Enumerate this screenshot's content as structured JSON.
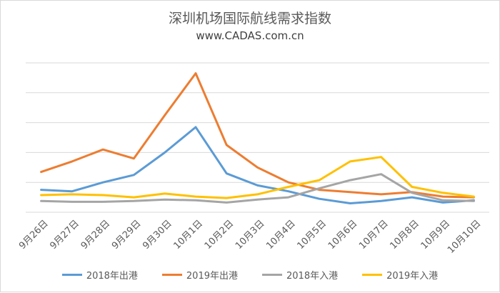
{
  "header": {
    "title": "深圳机场国际航线需求指数",
    "subtitle": "www.CADAS.com.cn"
  },
  "colors": {
    "grid": "#d9d9d9",
    "axis_text": "#595959"
  },
  "chart_data": {
    "type": "line",
    "title": "深圳机场国际航线需求指数",
    "subtitle": "www.CADAS.com.cn",
    "xlabel": "",
    "ylabel": "",
    "grid": true,
    "legend_position": "bottom",
    "ylim": [
      0,
      100
    ],
    "categories": [
      "9月26日",
      "9月27日",
      "9月28日",
      "9月29日",
      "9月30日",
      "10月1日",
      "10月2日",
      "10月3日",
      "10月4日",
      "10月5日",
      "10月6日",
      "10月7日",
      "10月8日",
      "10月9日",
      "10月10日"
    ],
    "series": [
      {
        "name": "2018年出港",
        "color": "#5b9bd5",
        "values": [
          15,
          14,
          20,
          25,
          40,
          57,
          26,
          18,
          14,
          9,
          6,
          7.5,
          10,
          6.5,
          8
        ]
      },
      {
        "name": "2019年出港",
        "color": "#ed7d31",
        "values": [
          27,
          34,
          42,
          36,
          65,
          93,
          45,
          30,
          20,
          15,
          13.5,
          12,
          13.5,
          10.5,
          10
        ]
      },
      {
        "name": "2018年入港",
        "color": "#a5a5a5",
        "values": [
          7.5,
          7,
          7,
          7.5,
          8.5,
          8,
          6.5,
          8.5,
          10,
          16,
          21.5,
          25.5,
          13,
          8,
          7.5
        ]
      },
      {
        "name": "2019年入港",
        "color": "#ffc000",
        "values": [
          11.5,
          12,
          11.5,
          10,
          12.5,
          10.5,
          9.5,
          12,
          17,
          21.5,
          34,
          37,
          17,
          13,
          10.5
        ]
      }
    ]
  }
}
